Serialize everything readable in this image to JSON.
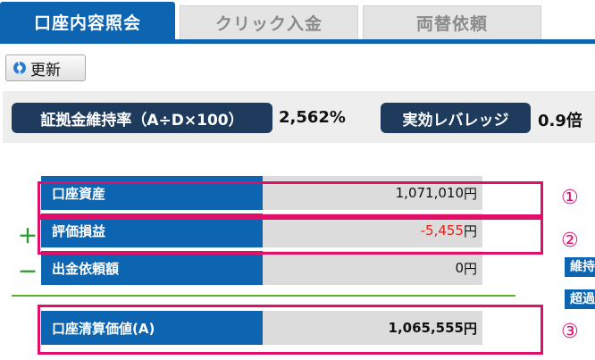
{
  "tabs": [
    {
      "label": "口座内容照会",
      "active": true
    },
    {
      "label": "クリック入金",
      "active": false
    },
    {
      "label": "両替依頼",
      "active": false
    }
  ],
  "toolbar": {
    "refresh_label": "更新",
    "refresh_icon": "refresh-icon"
  },
  "ratios": {
    "margin_ratio_label": "証拠金維持率（A÷D×100）",
    "margin_ratio_value": "2,562%",
    "leverage_label": "実効レバレッジ",
    "leverage_value": "0.9倍"
  },
  "rows": [
    {
      "sign": "",
      "label": "口座資産",
      "value": "1,071,010",
      "unit": "円"
    },
    {
      "sign": "＋",
      "label": "評価損益",
      "value": "-5,455",
      "unit": "円"
    },
    {
      "sign": "－",
      "label": "出金依頼額",
      "value": "0",
      "unit": "円"
    },
    {
      "sign": "",
      "label": "口座清算価値(A)",
      "value": "1,065,555",
      "unit": "円"
    }
  ],
  "annotations": [
    "①",
    "②",
    "③"
  ],
  "cutoff_labels": [
    "維持",
    "超過"
  ],
  "colors": {
    "accent": "#0d64b0",
    "highlight": "#e0106a",
    "negative": "#e2231a",
    "sign": "#2c9b2c"
  }
}
